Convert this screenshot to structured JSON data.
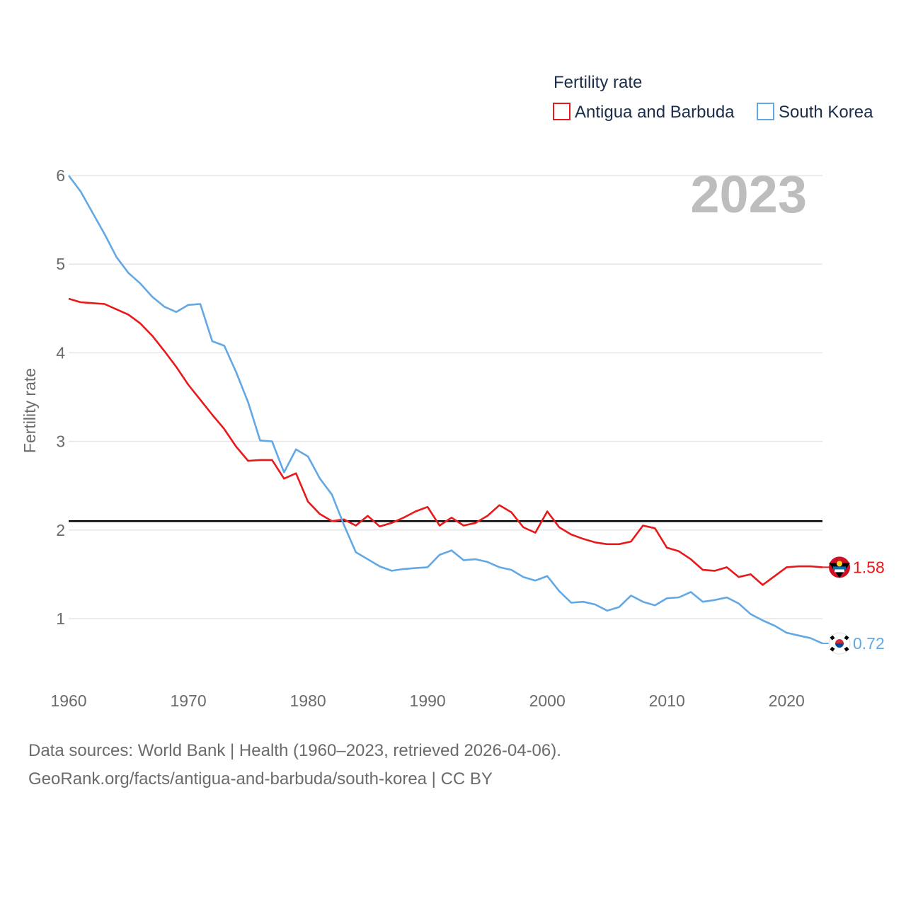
{
  "legend": {
    "title": "Fertility rate",
    "items": [
      {
        "label": "Antigua and Barbuda",
        "color": "#e8191a"
      },
      {
        "label": "South Korea",
        "color": "#62a8e5"
      }
    ]
  },
  "watermark_year": "2023",
  "footer": {
    "line1": "Data sources: World Bank | Health (1960–2023, retrieved 2026-04-06).",
    "line2": "GeoRank.org/facts/antigua-and-barbuda/south-korea | CC BY"
  },
  "chart_data": {
    "type": "line",
    "title": "Fertility rate",
    "xlabel": "",
    "ylabel": "Fertility rate",
    "xlim": [
      1960,
      2023
    ],
    "ylim": [
      0.7,
      6
    ],
    "x_ticks": [
      1960,
      1970,
      1980,
      1990,
      2000,
      2010,
      2020
    ],
    "y_ticks": [
      1,
      2,
      3,
      4,
      5,
      6
    ],
    "reference_line": {
      "y": 2.1,
      "color": "#000000"
    },
    "grid": true,
    "legend_position": "top-right",
    "x": [
      1960,
      1961,
      1962,
      1963,
      1964,
      1965,
      1966,
      1967,
      1968,
      1969,
      1970,
      1971,
      1972,
      1973,
      1974,
      1975,
      1976,
      1977,
      1978,
      1979,
      1980,
      1981,
      1982,
      1983,
      1984,
      1985,
      1986,
      1987,
      1988,
      1989,
      1990,
      1991,
      1992,
      1993,
      1994,
      1995,
      1996,
      1997,
      1998,
      1999,
      2000,
      2001,
      2002,
      2003,
      2004,
      2005,
      2006,
      2007,
      2008,
      2009,
      2010,
      2011,
      2012,
      2013,
      2014,
      2015,
      2016,
      2017,
      2018,
      2019,
      2020,
      2021,
      2022,
      2023
    ],
    "series": [
      {
        "name": "Antigua and Barbuda",
        "color": "#e8191a",
        "end_label": "1.58",
        "values": [
          4.61,
          4.57,
          4.56,
          4.55,
          4.49,
          4.43,
          4.33,
          4.19,
          4.02,
          3.84,
          3.64,
          3.47,
          3.3,
          3.14,
          2.94,
          2.78,
          2.79,
          2.79,
          2.58,
          2.64,
          2.32,
          2.18,
          2.1,
          2.12,
          2.05,
          2.16,
          2.04,
          2.08,
          2.14,
          2.21,
          2.26,
          2.05,
          2.14,
          2.05,
          2.08,
          2.16,
          2.28,
          2.2,
          2.03,
          1.97,
          2.21,
          2.03,
          1.95,
          1.9,
          1.86,
          1.84,
          1.84,
          1.87,
          2.05,
          2.02,
          1.8,
          1.76,
          1.67,
          1.55,
          1.54,
          1.58,
          1.47,
          1.5,
          1.38,
          1.48,
          1.58,
          1.59,
          1.59,
          1.58
        ]
      },
      {
        "name": "South Korea",
        "color": "#62a8e5",
        "end_label": "0.72",
        "values": [
          6.0,
          5.82,
          5.58,
          5.34,
          5.08,
          4.9,
          4.78,
          4.63,
          4.52,
          4.46,
          4.54,
          4.55,
          4.13,
          4.08,
          3.78,
          3.44,
          3.01,
          3.0,
          2.65,
          2.91,
          2.83,
          2.58,
          2.4,
          2.06,
          1.75,
          1.67,
          1.59,
          1.54,
          1.56,
          1.57,
          1.58,
          1.72,
          1.77,
          1.66,
          1.67,
          1.64,
          1.58,
          1.55,
          1.47,
          1.43,
          1.48,
          1.31,
          1.18,
          1.19,
          1.16,
          1.09,
          1.13,
          1.26,
          1.19,
          1.15,
          1.23,
          1.24,
          1.3,
          1.19,
          1.21,
          1.24,
          1.17,
          1.05,
          0.98,
          0.92,
          0.84,
          0.81,
          0.78,
          0.72
        ]
      }
    ]
  }
}
